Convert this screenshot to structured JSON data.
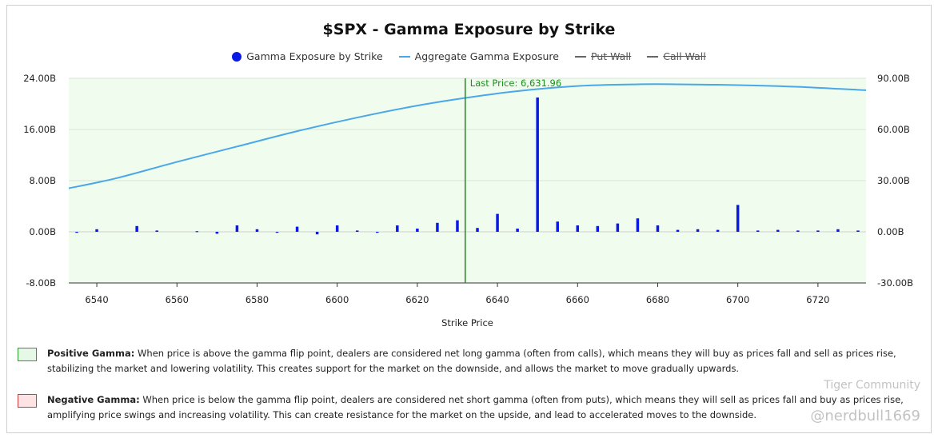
{
  "chart_data": {
    "type": "bar",
    "title": "$SPX - Gamma Exposure by Strike",
    "xlabel": "Strike Price",
    "ylabel": "",
    "xlim": [
      6533,
      6732
    ],
    "ylim": [
      -8,
      24
    ],
    "y2lim": [
      -30,
      90
    ],
    "x_ticks": [
      "6540",
      "6560",
      "6580",
      "6600",
      "6620",
      "6640",
      "6660",
      "6680",
      "6700",
      "6720"
    ],
    "y_ticks": [
      "-8.00B",
      "0.00B",
      "8.00B",
      "16.00B",
      "24.00B"
    ],
    "y2_ticks": [
      "-30.00B",
      "0.00B",
      "30.00B",
      "60.00B",
      "90.00B"
    ],
    "legend": [
      {
        "label": "Gamma Exposure by Strike",
        "style": "dot",
        "color": "#0a1ae6",
        "struck": false
      },
      {
        "label": "Aggregate Gamma Exposure",
        "style": "line",
        "color": "#4aa8e8",
        "struck": false
      },
      {
        "label": "Put Wall",
        "style": "line",
        "color": "#666666",
        "struck": true
      },
      {
        "label": "Call Wall",
        "style": "line",
        "color": "#666666",
        "struck": true
      }
    ],
    "legend_position": "top-center",
    "grid": true,
    "series": [
      {
        "name": "Gamma Exposure by Strike",
        "axis": "left",
        "x": [
          6535,
          6540,
          6550,
          6555,
          6565,
          6570,
          6575,
          6580,
          6585,
          6590,
          6595,
          6600,
          6605,
          6610,
          6615,
          6620,
          6625,
          6630,
          6635,
          6640,
          6645,
          6650,
          6655,
          6660,
          6665,
          6670,
          6675,
          6680,
          6685,
          6690,
          6695,
          6700,
          6705,
          6710,
          6715,
          6720,
          6725,
          6730
        ],
        "values": [
          -0.1,
          0.4,
          0.9,
          0.2,
          0.1,
          -0.3,
          1.0,
          0.4,
          -0.1,
          0.8,
          -0.4,
          1.0,
          0.2,
          -0.1,
          1.0,
          0.5,
          1.4,
          1.8,
          0.6,
          2.8,
          0.5,
          21.0,
          1.6,
          1.0,
          0.9,
          1.3,
          2.1,
          1.0,
          0.3,
          0.4,
          0.3,
          4.2,
          0.2,
          0.3,
          0.2,
          0.2,
          0.4,
          0.2
        ]
      },
      {
        "name": "Aggregate Gamma Exposure",
        "axis": "right",
        "x": [
          6533,
          6545,
          6560,
          6575,
          6590,
          6605,
          6620,
          6632,
          6645,
          6660,
          6675,
          6685,
          6700,
          6715,
          6732
        ],
        "values": [
          25.5,
          31.5,
          41.0,
          50.0,
          59.0,
          67.0,
          74.0,
          78.5,
          82.5,
          85.5,
          86.5,
          86.5,
          86.0,
          85.0,
          83.0
        ]
      }
    ],
    "annotations": [
      {
        "type": "vline",
        "x": 6631.96,
        "label": "Last Price: 6,631.96",
        "color": "#1c8f1c"
      }
    ],
    "colors": {
      "plot_background": "#f0fcee",
      "bars": "#0a1ae6",
      "aggregate_line": "#4aa8e8",
      "last_price": "#1c8f1c"
    }
  },
  "notes": {
    "positive": {
      "heading": "Positive Gamma:",
      "text": " When price is above the gamma flip point, dealers are considered net long gamma (often from calls), which means they will buy as prices fall and sell as prices rise, stabilizing the market and lowering volatility. This creates support for the market on the downside, and allows the market to move gradually upwards.",
      "swatch_fill": "#e6f9e6",
      "swatch_border": "#2e9e2e"
    },
    "negative": {
      "heading": "Negative Gamma:",
      "text": " When price is below the gamma flip point, dealers are considered net short gamma (often from puts), which means they will sell as prices fall and buy as prices rise, amplifying price swings and increasing volatility. This can create resistance for the market on the upside, and lead to accelerated moves to the downside.",
      "swatch_fill": "#fde3e3",
      "swatch_border": "#d23c3c"
    }
  },
  "watermark": {
    "brand": "Tiger Community",
    "handle": "@nerdbull1669"
  }
}
